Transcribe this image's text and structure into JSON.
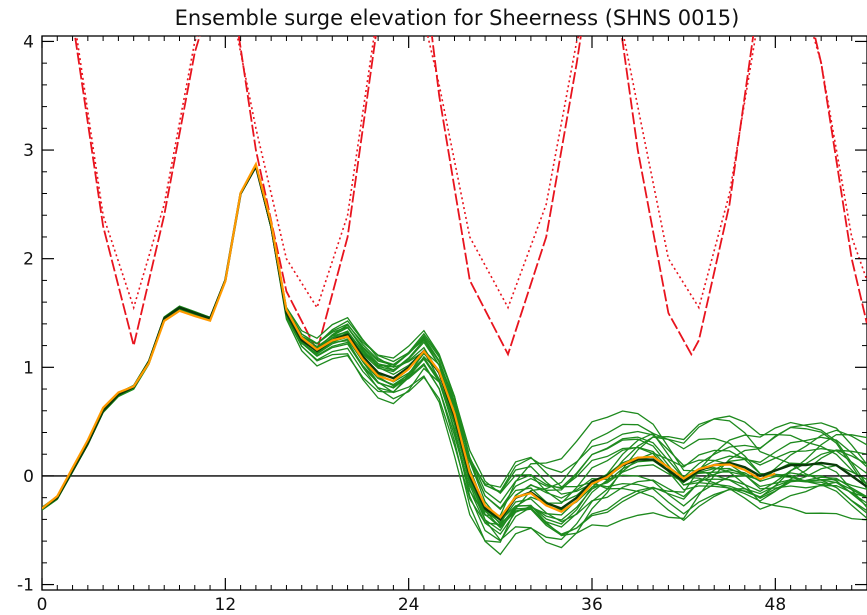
{
  "chart_data": {
    "type": "line",
    "title": "Ensemble surge elevation for Sheerness (SHNS 0015)",
    "xlabel": "",
    "ylabel": "",
    "xlim": [
      0,
      54
    ],
    "ylim": [
      -1.05,
      4.05
    ],
    "grid": false,
    "zero_line": 0,
    "x_ticks": [
      0,
      12,
      24,
      36,
      48
    ],
    "y_ticks": [
      -1,
      0,
      1,
      2,
      3,
      4
    ],
    "colors": {
      "ensemble": "#1e8a1e",
      "control": "#ff9a00",
      "ensemble_mean": "#0a3a0a",
      "threshold": "#e8141e",
      "zero_line": "#000000",
      "axis": "#000000"
    },
    "series": [
      {
        "role": "threshold-dashed",
        "x": [
          0,
          2,
          4,
          6,
          8,
          10,
          11.5,
          12.3,
          14,
          16,
          18,
          20,
          22,
          23.6,
          24.7,
          26,
          28,
          30.5,
          33,
          35,
          36.3,
          37,
          39,
          41,
          42.5,
          43,
          45,
          46.7,
          47.6,
          49,
          51,
          53,
          54
        ],
        "y": [
          6.5,
          4.2,
          2.3,
          1.2,
          2.4,
          3.9,
          4.6,
          4.6,
          3.0,
          1.7,
          1.15,
          2.2,
          4.2,
          5.0,
          5.0,
          3.5,
          1.8,
          1.12,
          2.2,
          3.8,
          5.0,
          5.0,
          3.0,
          1.5,
          1.12,
          1.25,
          2.5,
          4.2,
          5.0,
          5.0,
          3.8,
          2.0,
          1.4
        ]
      },
      {
        "role": "threshold-dotted",
        "x": [
          0,
          2,
          4,
          6,
          8,
          10,
          12,
          14,
          16,
          18,
          20,
          22,
          24,
          26,
          28,
          30.5,
          33,
          35,
          37,
          39,
          41,
          43,
          45,
          47,
          49,
          51,
          53,
          54
        ],
        "y": [
          6.4,
          4.3,
          2.4,
          1.55,
          2.5,
          4.0,
          4.6,
          3.2,
          2.0,
          1.55,
          2.4,
          4.3,
          4.8,
          3.6,
          2.2,
          1.55,
          2.5,
          4.0,
          4.8,
          3.4,
          2.0,
          1.55,
          2.6,
          4.3,
          4.8,
          3.8,
          2.2,
          1.8
        ]
      },
      {
        "role": "ensemble",
        "x": [
          0,
          1,
          2,
          3,
          4,
          5,
          6,
          7,
          8,
          9,
          10,
          11,
          12,
          13,
          14,
          15,
          16,
          17,
          18,
          19,
          20,
          21,
          22,
          23,
          24,
          25,
          26,
          27,
          28,
          29,
          30,
          31,
          32,
          33,
          34,
          35,
          36,
          37,
          38,
          39,
          40,
          41,
          42,
          43,
          44,
          45,
          46,
          47,
          48,
          49,
          50,
          51,
          52,
          53,
          54
        ],
        "y": [
          -0.3,
          -0.2,
          0.05,
          0.3,
          0.6,
          0.75,
          0.82,
          1.05,
          1.45,
          1.55,
          1.5,
          1.45,
          1.8,
          2.6,
          2.85,
          2.3,
          1.5,
          1.25,
          1.15,
          1.25,
          1.3,
          1.1,
          0.95,
          0.9,
          1.0,
          1.15,
          0.95,
          0.55,
          0.0,
          -0.3,
          -0.4,
          -0.2,
          -0.15,
          -0.25,
          -0.3,
          -0.2,
          -0.05,
          0.0,
          0.1,
          0.15,
          0.15,
          0.05,
          -0.05,
          0.05,
          0.1,
          0.12,
          0.08,
          0.0,
          0.05,
          0.1,
          0.1,
          0.12,
          0.1,
          0.0,
          -0.1
        ]
      }
    ]
  }
}
